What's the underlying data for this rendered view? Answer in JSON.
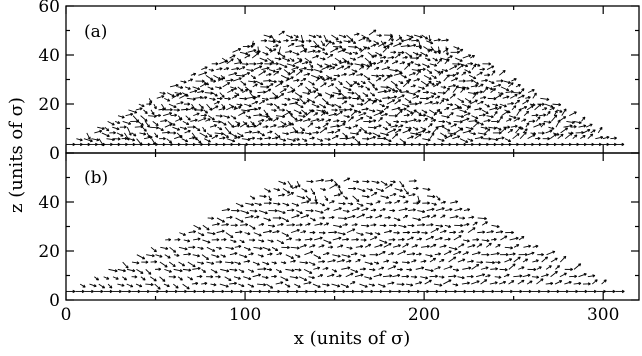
{
  "chart_data": [
    {
      "type": "vector-field",
      "panel_label": "(a)",
      "xlim": [
        0,
        320
      ],
      "ylim": [
        0,
        60
      ],
      "x_ticks": [
        "0",
        "100",
        "200",
        "300"
      ],
      "y_ticks": [
        "0",
        "20",
        "40",
        "60"
      ],
      "shape": {
        "base_x": [
          0,
          310
        ],
        "top_x": [
          115,
          202
        ],
        "height": 50,
        "base_z": 3.5
      },
      "grid": false
    },
    {
      "type": "vector-field",
      "panel_label": "(b)",
      "xlim": [
        0,
        320
      ],
      "ylim": [
        0,
        60
      ],
      "x_ticks": [
        "0",
        "100",
        "200",
        "300"
      ],
      "y_ticks": [
        "0",
        "20",
        "40",
        "60"
      ],
      "shape": {
        "base_x": [
          0,
          310
        ],
        "top_x": [
          120,
          192
        ],
        "height": 49,
        "base_z": 3.5
      },
      "grid": false
    }
  ],
  "axes": {
    "xlabel": "x (units of σ)",
    "ylabel": "z (units of σ)"
  }
}
